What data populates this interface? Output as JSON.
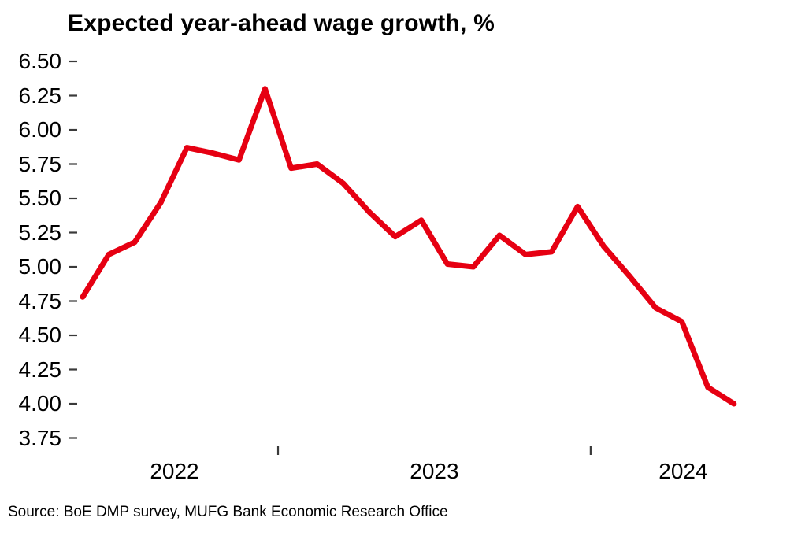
{
  "title": "Expected year-ahead wage growth, %",
  "source": "Source: BoE DMP survey, MUFG Bank Economic Research Office",
  "colors": {
    "line": "#e60012",
    "text": "#000000",
    "tick": "#3a3a3a",
    "background": "#ffffff"
  },
  "chart_data": {
    "type": "line",
    "title": "Expected year-ahead wage growth, %",
    "grid": false,
    "legend": false,
    "ylim": [
      3.75,
      6.5
    ],
    "x": [
      "2022-05",
      "2022-06",
      "2022-07",
      "2022-08",
      "2022-09",
      "2022-10",
      "2022-11",
      "2022-12",
      "2023-01",
      "2023-02",
      "2023-03",
      "2023-04",
      "2023-05",
      "2023-06",
      "2023-07",
      "2023-08",
      "2023-09",
      "2023-10",
      "2023-11",
      "2023-12",
      "2024-01",
      "2024-02",
      "2024-03",
      "2024-04",
      "2024-05",
      "2024-06"
    ],
    "series": [
      {
        "name": "Expected year-ahead wage growth, %",
        "color": "#e60012",
        "values": [
          4.78,
          5.09,
          5.18,
          5.47,
          5.87,
          5.83,
          5.78,
          6.3,
          5.72,
          5.75,
          5.61,
          5.4,
          5.22,
          5.34,
          5.02,
          5.0,
          5.23,
          5.09,
          5.11,
          5.44,
          5.15,
          4.93,
          4.7,
          4.6,
          4.12,
          4.0
        ]
      }
    ],
    "y_axis": {
      "min": 3.75,
      "max": 6.5,
      "step": 0.25,
      "tick_labels": [
        "6.50",
        "6.25",
        "6.00",
        "5.75",
        "5.50",
        "5.25",
        "5.00",
        "4.75",
        "4.50",
        "4.25",
        "4.00",
        "3.75"
      ]
    },
    "x_axis": {
      "year_labels": [
        "2022",
        "2023",
        "2024"
      ],
      "boundary_tick_months": [
        "2023-01",
        "2024-01"
      ]
    }
  }
}
